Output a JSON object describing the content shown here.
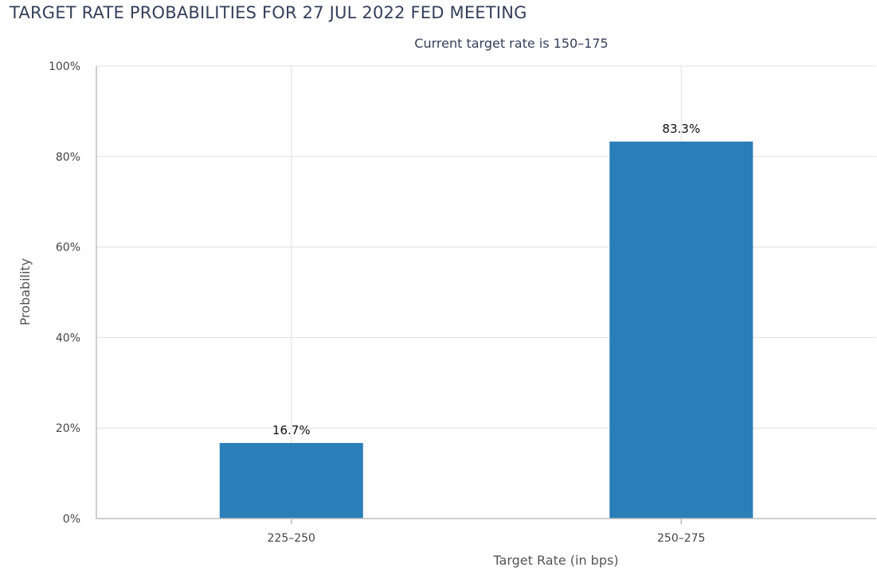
{
  "chart_data": {
    "type": "bar",
    "title": "TARGET RATE PROBABILITIES FOR 27 JUL 2022 FED MEETING",
    "subtitle": "Current target rate is 150–175",
    "xlabel": "Target Rate (in bps)",
    "ylabel": "Probability",
    "categories": [
      "225–250",
      "250–275"
    ],
    "values": [
      16.7,
      83.3
    ],
    "data_labels": [
      "16.7%",
      "83.3%"
    ],
    "ylim": [
      0,
      100
    ],
    "yticks": [
      0,
      20,
      40,
      60,
      80,
      100
    ],
    "ytick_labels": [
      "0%",
      "20%",
      "40%",
      "60%",
      "80%",
      "100%"
    ],
    "grid": true,
    "bar_color": "#2a7fb8"
  }
}
